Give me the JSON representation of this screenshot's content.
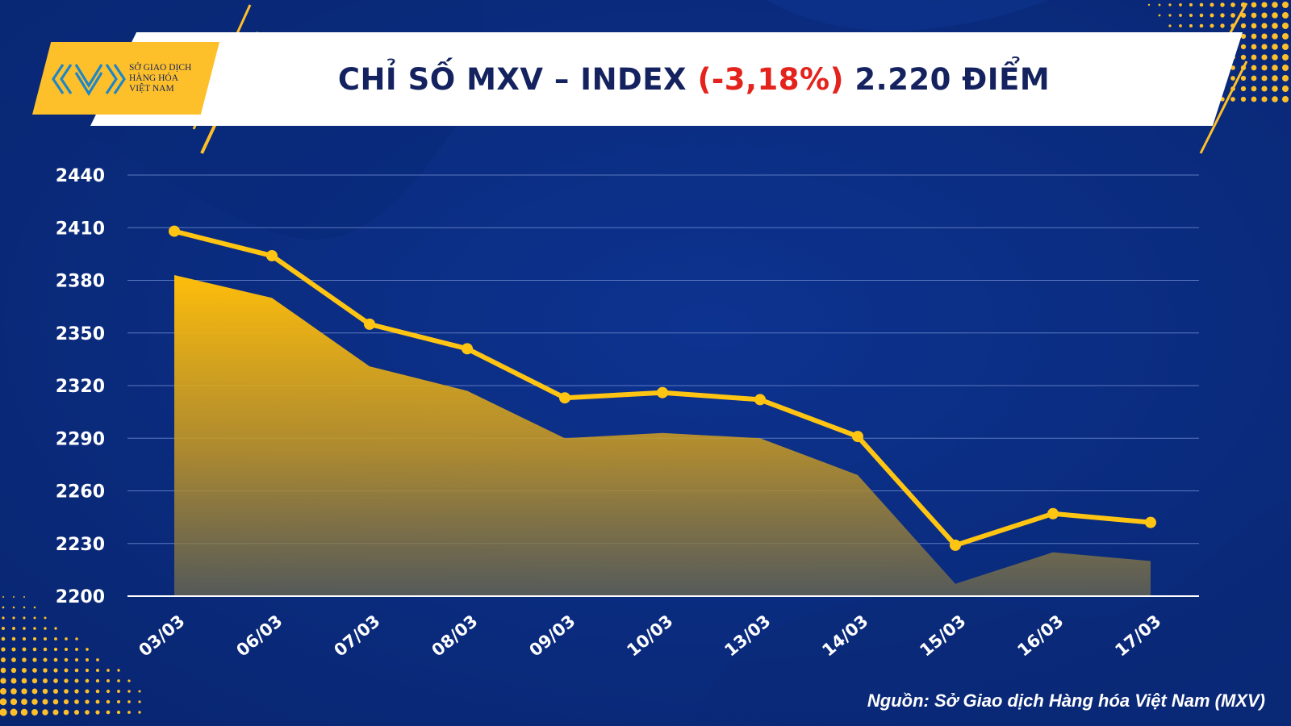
{
  "header": {
    "title_prefix": "CHỈ SỐ MXV – INDEX",
    "title_change": "(-3,18%)",
    "title_suffix": "2.220 ĐIỂM"
  },
  "logo": {
    "line1": "SỞ GIAO DỊCH",
    "line2": "HÀNG HÓA",
    "line3": "VIỆT NAM"
  },
  "footer": {
    "source": "Nguồn: Sở Giao dịch Hàng hóa Việt Nam (MXV)"
  },
  "colors": {
    "background": "#0b2f86",
    "accent": "#fec02a",
    "line": "#ffc512",
    "title": "#14235f",
    "negative": "#e4231c"
  },
  "chart_data": {
    "type": "line",
    "categories": [
      "03/03",
      "06/03",
      "07/03",
      "08/03",
      "09/03",
      "10/03",
      "13/03",
      "14/03",
      "15/03",
      "16/03",
      "17/03"
    ],
    "series": [
      {
        "values": [
          2408,
          2394,
          2355,
          2341,
          2313,
          2316,
          2312,
          2291,
          2229,
          2247,
          2242
        ]
      }
    ],
    "shaded_area_values": [
      2383,
      2370,
      2331,
      2317,
      2290,
      2293,
      2290,
      2269,
      2207,
      2225,
      2220
    ],
    "yticks": [
      2200,
      2230,
      2260,
      2290,
      2320,
      2350,
      2380,
      2410,
      2440
    ],
    "ylim": [
      2200,
      2440
    ],
    "grid": true,
    "legend": "none"
  }
}
